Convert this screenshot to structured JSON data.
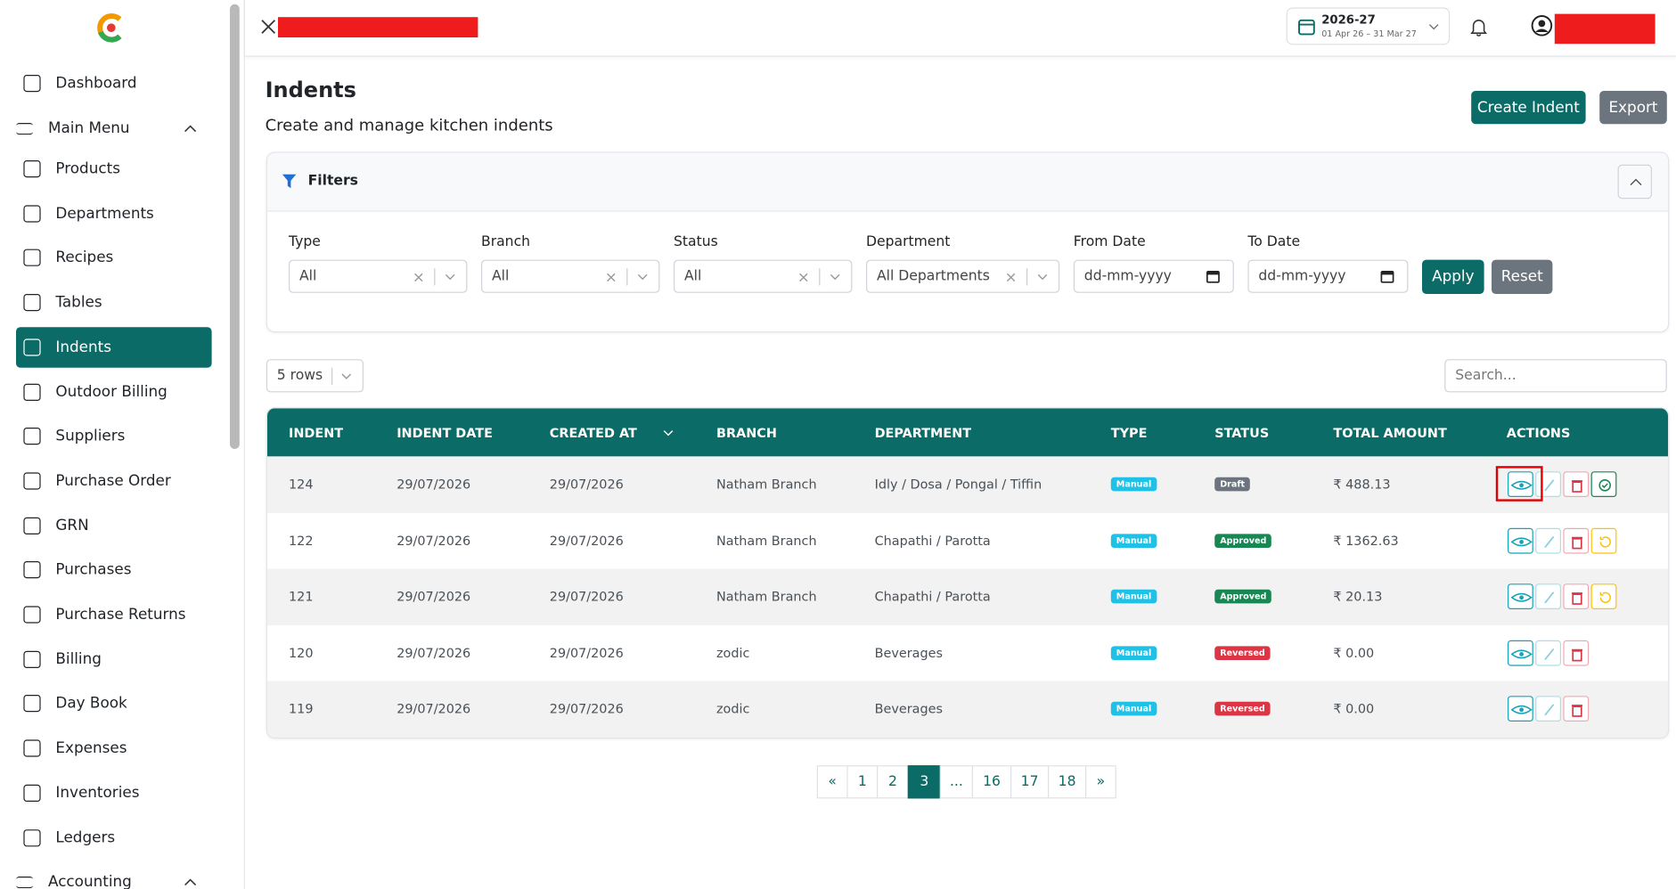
{
  "sidebar": {
    "items": [
      {
        "label": "Dashboard"
      },
      {
        "label": "Main Menu",
        "group": true
      },
      {
        "label": "Products"
      },
      {
        "label": "Departments"
      },
      {
        "label": "Recipes"
      },
      {
        "label": "Tables"
      },
      {
        "label": "Indents",
        "active": true
      },
      {
        "label": "Outdoor Billing"
      },
      {
        "label": "Suppliers"
      },
      {
        "label": "Purchase Order"
      },
      {
        "label": "GRN"
      },
      {
        "label": "Purchases"
      },
      {
        "label": "Purchase Returns"
      },
      {
        "label": "Billing"
      },
      {
        "label": "Day Book"
      },
      {
        "label": "Expenses"
      },
      {
        "label": "Inventories"
      },
      {
        "label": "Ledgers"
      },
      {
        "label": "Accounting",
        "group": true
      }
    ]
  },
  "header": {
    "fy": "2026-27",
    "fy_range": "01 Apr 26 – 31 Mar 27"
  },
  "page": {
    "title": "Indents",
    "subtitle": "Create and manage kitchen indents",
    "create_button": "Create Indent",
    "export_button": "Export"
  },
  "filters": {
    "title": "Filters",
    "fields": [
      {
        "label": "Type",
        "value": "All",
        "kind": "select"
      },
      {
        "label": "Branch",
        "value": "All",
        "kind": "select"
      },
      {
        "label": "Status",
        "value": "All",
        "kind": "select"
      },
      {
        "label": "Department",
        "value": "All Departments",
        "kind": "select"
      },
      {
        "label": "From Date",
        "value": "dd-mm-yyyy",
        "kind": "date"
      },
      {
        "label": "To Date",
        "value": "dd-mm-yyyy",
        "kind": "date"
      }
    ],
    "apply": "Apply",
    "reset": "Reset"
  },
  "table": {
    "rows_select": "5 rows",
    "search_placeholder": "Search...",
    "columns": [
      "INDENT",
      "INDENT DATE",
      "CREATED AT",
      "BRANCH",
      "DEPARTMENT",
      "TYPE",
      "STATUS",
      "TOTAL AMOUNT",
      "ACTIONS"
    ],
    "rows": [
      {
        "cells": [
          "124",
          "29/07/2026",
          "29/07/2026",
          "Natham Branch",
          "Idly / Dosa / Pongal / Tiffin",
          "Manual",
          "Draft",
          "₹ 488.13"
        ],
        "status_color": "#6c757d",
        "extra_action": "approve",
        "highlighted": true
      },
      {
        "cells": [
          "122",
          "29/07/2026",
          "29/07/2026",
          "Natham Branch",
          "Chapathi / Parotta",
          "Manual",
          "Approved",
          "₹ 1362.63"
        ],
        "status_color": "#198754",
        "extra_action": "revert"
      },
      {
        "cells": [
          "121",
          "29/07/2026",
          "29/07/2026",
          "Natham Branch",
          "Chapathi / Parotta",
          "Manual",
          "Approved",
          "₹ 20.13"
        ],
        "status_color": "#198754",
        "extra_action": "revert"
      },
      {
        "cells": [
          "120",
          "29/07/2026",
          "29/07/2026",
          "zodic",
          "Beverages",
          "Manual",
          "Reversed",
          "₹ 0.00"
        ],
        "status_color": "#dc3545"
      },
      {
        "cells": [
          "119",
          "29/07/2026",
          "29/07/2026",
          "zodic",
          "Beverages",
          "Manual",
          "Reversed",
          "₹ 0.00"
        ],
        "status_color": "#dc3545"
      }
    ]
  },
  "pagination": [
    {
      "label": "«"
    },
    {
      "label": "1"
    },
    {
      "label": "2"
    },
    {
      "label": "3",
      "active": true
    },
    {
      "label": "..."
    },
    {
      "label": "16"
    },
    {
      "label": "17"
    },
    {
      "label": "18"
    },
    {
      "label": "»"
    }
  ]
}
